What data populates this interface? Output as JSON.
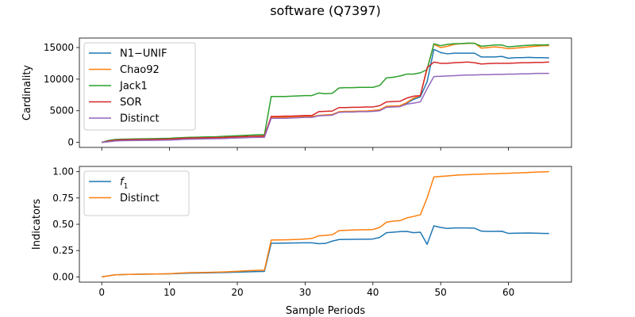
{
  "figure": {
    "title": "software (Q7397)",
    "xlabel": "Sample Periods"
  },
  "chart_data": [
    {
      "type": "line",
      "ylabel": "Cardinality",
      "xlim": [
        -3.3,
        69.3
      ],
      "ylim": [
        -800,
        16500
      ],
      "xticks": [
        0,
        10,
        20,
        30,
        40,
        50,
        60
      ],
      "yticks": [
        0,
        5000,
        10000,
        15000
      ],
      "legend_position": "top-left",
      "x": [
        0,
        1,
        2,
        3,
        4,
        5,
        6,
        7,
        8,
        9,
        10,
        11,
        12,
        13,
        14,
        15,
        16,
        17,
        18,
        19,
        20,
        21,
        22,
        23,
        24,
        25,
        26,
        27,
        28,
        29,
        30,
        31,
        32,
        33,
        34,
        35,
        36,
        37,
        38,
        39,
        40,
        41,
        42,
        43,
        44,
        45,
        46,
        47,
        48,
        49,
        50,
        51,
        52,
        53,
        54,
        55,
        56,
        57,
        58,
        59,
        60,
        61,
        62,
        63,
        64,
        65,
        66
      ],
      "series": [
        {
          "name": "N1−UNIF",
          "color": "#1f77b4",
          "values": [
            0,
            120,
            260,
            300,
            320,
            340,
            350,
            360,
            370,
            380,
            400,
            450,
            520,
            560,
            580,
            600,
            620,
            640,
            660,
            720,
            760,
            800,
            850,
            870,
            900,
            3900,
            3900,
            3950,
            3950,
            4000,
            4050,
            4050,
            4200,
            4300,
            4350,
            4800,
            4850,
            4850,
            4900,
            4900,
            5000,
            5100,
            5650,
            5700,
            5750,
            6200,
            6800,
            7200,
            9600,
            14700,
            14200,
            14000,
            14100,
            14100,
            14100,
            14100,
            13500,
            13500,
            13500,
            13600,
            13300,
            13400,
            13400,
            13450,
            13400,
            13400,
            13350
          ]
        },
        {
          "name": "Chao92",
          "color": "#ff7f0e",
          "values": [
            0,
            130,
            280,
            320,
            340,
            360,
            370,
            380,
            390,
            400,
            420,
            480,
            560,
            600,
            620,
            640,
            660,
            680,
            700,
            780,
            820,
            860,
            900,
            930,
            960,
            3950,
            3950,
            4000,
            4000,
            4050,
            4100,
            4100,
            4250,
            4350,
            4400,
            4850,
            4900,
            4900,
            4950,
            4950,
            5050,
            5150,
            5700,
            5750,
            5800,
            6300,
            7000,
            7400,
            11600,
            15500,
            15000,
            15200,
            15500,
            15600,
            15650,
            15700,
            14900,
            15000,
            15100,
            15000,
            14800,
            14900,
            15000,
            15100,
            15200,
            15300,
            15300
          ]
        },
        {
          "name": "Jack1",
          "color": "#2ca02c",
          "values": [
            0,
            300,
            450,
            500,
            520,
            550,
            560,
            580,
            600,
            620,
            640,
            700,
            750,
            800,
            820,
            850,
            880,
            900,
            950,
            1000,
            1050,
            1100,
            1150,
            1200,
            1200,
            7250,
            7250,
            7250,
            7300,
            7350,
            7400,
            7400,
            7800,
            7700,
            7750,
            8600,
            8650,
            8650,
            8700,
            8700,
            8700,
            9000,
            10200,
            10300,
            10500,
            10800,
            10800,
            11000,
            11500,
            15600,
            15300,
            15500,
            15600,
            15600,
            15700,
            15650,
            15200,
            15300,
            15400,
            15400,
            15100,
            15200,
            15300,
            15350,
            15400,
            15400,
            15450
          ]
        },
        {
          "name": "SOR",
          "color": "#d62728",
          "values": [
            0,
            200,
            350,
            400,
            420,
            440,
            450,
            460,
            480,
            500,
            520,
            580,
            640,
            680,
            700,
            720,
            740,
            760,
            780,
            840,
            880,
            920,
            960,
            990,
            1020,
            4100,
            4100,
            4150,
            4150,
            4200,
            4250,
            4250,
            4850,
            4900,
            4950,
            5500,
            5500,
            5550,
            5550,
            5600,
            5600,
            5800,
            6400,
            6450,
            6500,
            7000,
            7300,
            7400,
            11800,
            12700,
            12500,
            12500,
            12600,
            12650,
            12700,
            12600,
            12400,
            12450,
            12500,
            12500,
            12500,
            12550,
            12600,
            12600,
            12650,
            12650,
            12700
          ]
        },
        {
          "name": "Distinct",
          "color": "#9467bd",
          "values": [
            0,
            100,
            220,
            260,
            280,
            300,
            310,
            320,
            330,
            340,
            360,
            410,
            470,
            500,
            520,
            540,
            560,
            580,
            600,
            660,
            690,
            720,
            760,
            780,
            800,
            3800,
            3800,
            3800,
            3850,
            3900,
            3950,
            3950,
            4200,
            4250,
            4300,
            4750,
            4800,
            4800,
            4850,
            4850,
            4900,
            5000,
            5550,
            5600,
            5650,
            6050,
            6200,
            6400,
            8500,
            10400,
            10450,
            10500,
            10550,
            10600,
            10650,
            10650,
            10700,
            10700,
            10750,
            10750,
            10800,
            10800,
            10850,
            10850,
            10900,
            10900,
            10900
          ]
        }
      ]
    },
    {
      "type": "line",
      "ylabel": "Indicators",
      "xlim": [
        -3.3,
        69.3
      ],
      "ylim": [
        -0.05,
        1.05
      ],
      "xticks": [
        0,
        10,
        20,
        30,
        40,
        50,
        60
      ],
      "xtick_labels": [
        "0",
        "10",
        "20",
        "30",
        "40",
        "50",
        "60"
      ],
      "yticks": [
        0.0,
        0.25,
        0.5,
        0.75,
        1.0
      ],
      "ytick_labels": [
        "0.00",
        "0.25",
        "0.50",
        "0.75",
        "1.00"
      ],
      "legend_position": "top-left",
      "x": [
        0,
        1,
        2,
        3,
        4,
        5,
        6,
        7,
        8,
        9,
        10,
        11,
        12,
        13,
        14,
        15,
        16,
        17,
        18,
        19,
        20,
        21,
        22,
        23,
        24,
        25,
        26,
        27,
        28,
        29,
        30,
        31,
        32,
        33,
        34,
        35,
        36,
        37,
        38,
        39,
        40,
        41,
        42,
        43,
        44,
        45,
        46,
        47,
        48,
        49,
        50,
        51,
        52,
        53,
        54,
        55,
        56,
        57,
        58,
        59,
        60,
        61,
        62,
        63,
        64,
        65,
        66
      ],
      "series": [
        {
          "name": "f1",
          "label_main": "f",
          "label_sub": "1",
          "color": "#1f77b4",
          "values": [
            0.0,
            0.01,
            0.02,
            0.022,
            0.023,
            0.024,
            0.025,
            0.026,
            0.027,
            0.028,
            0.029,
            0.031,
            0.034,
            0.036,
            0.037,
            0.038,
            0.039,
            0.04,
            0.041,
            0.043,
            0.045,
            0.047,
            0.049,
            0.051,
            0.052,
            0.32,
            0.32,
            0.321,
            0.322,
            0.323,
            0.324,
            0.324,
            0.315,
            0.318,
            0.34,
            0.355,
            0.356,
            0.357,
            0.358,
            0.358,
            0.36,
            0.375,
            0.42,
            0.425,
            0.43,
            0.432,
            0.42,
            0.425,
            0.31,
            0.485,
            0.47,
            0.46,
            0.465,
            0.465,
            0.465,
            0.463,
            0.435,
            0.432,
            0.433,
            0.434,
            0.413,
            0.415,
            0.416,
            0.417,
            0.415,
            0.413,
            0.412
          ]
        },
        {
          "name": "Distinct",
          "label_main": "Distinct",
          "label_sub": "",
          "color": "#ff7f0e",
          "values": [
            0.0,
            0.01,
            0.02,
            0.022,
            0.023,
            0.024,
            0.025,
            0.026,
            0.027,
            0.028,
            0.03,
            0.034,
            0.038,
            0.04,
            0.041,
            0.042,
            0.043,
            0.045,
            0.047,
            0.05,
            0.053,
            0.056,
            0.06,
            0.062,
            0.064,
            0.35,
            0.351,
            0.352,
            0.354,
            0.356,
            0.36,
            0.365,
            0.39,
            0.395,
            0.4,
            0.44,
            0.443,
            0.445,
            0.447,
            0.448,
            0.45,
            0.47,
            0.52,
            0.53,
            0.535,
            0.56,
            0.575,
            0.59,
            0.75,
            0.95,
            0.955,
            0.96,
            0.965,
            0.97,
            0.972,
            0.975,
            0.977,
            0.979,
            0.98,
            0.983,
            0.985,
            0.988,
            0.99,
            0.993,
            0.996,
            0.998,
            1.0
          ]
        }
      ]
    }
  ]
}
